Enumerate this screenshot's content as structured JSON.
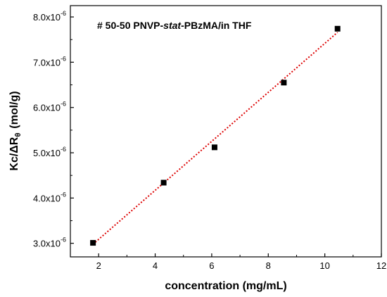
{
  "chart_data": {
    "type": "scatter",
    "title": "# 50-50 PNVP-stat-PBzMA/in THF",
    "title_parts": {
      "prefix": "# 50-50 PNVP-",
      "italic": "stat",
      "suffix": "-PBzMA/in THF"
    },
    "xlabel": "concentration (mg/mL)",
    "ylabel": "Kc/ΔRθ (mol/g)",
    "ylabel_parts": {
      "main": "Kc/ΔR",
      "subscript": "θ",
      "unit": "(mol/g)"
    },
    "xlim": [
      1,
      12
    ],
    "ylim": [
      2.7e-06,
      8.25e-06
    ],
    "xticks": [
      2,
      4,
      6,
      8,
      10,
      12
    ],
    "yticks": [
      3e-06,
      4e-06,
      5e-06,
      6e-06,
      7e-06,
      8e-06
    ],
    "ytick_labels": [
      {
        "mantissa": "3.0x10",
        "exponent": "-6"
      },
      {
        "mantissa": "4.0x10",
        "exponent": "-6"
      },
      {
        "mantissa": "5.0x10",
        "exponent": "-6"
      },
      {
        "mantissa": "6.0x10",
        "exponent": "-6"
      },
      {
        "mantissa": "7.0x10",
        "exponent": "-6"
      },
      {
        "mantissa": "8.0x10",
        "exponent": "-6"
      }
    ],
    "points": [
      {
        "x": 1.8,
        "y": 3.01e-06
      },
      {
        "x": 4.3,
        "y": 4.34e-06
      },
      {
        "x": 6.1,
        "y": 5.12e-06
      },
      {
        "x": 8.55,
        "y": 6.55e-06
      },
      {
        "x": 10.45,
        "y": 7.74e-06
      }
    ],
    "fit_line": {
      "x": [
        1.8,
        10.45
      ],
      "y": [
        2.98e-06,
        7.66e-06
      ],
      "color": "#dd0000",
      "style": "dotted"
    },
    "marker_color": "#000000",
    "marker": "square",
    "grid": false,
    "legend": "none"
  }
}
